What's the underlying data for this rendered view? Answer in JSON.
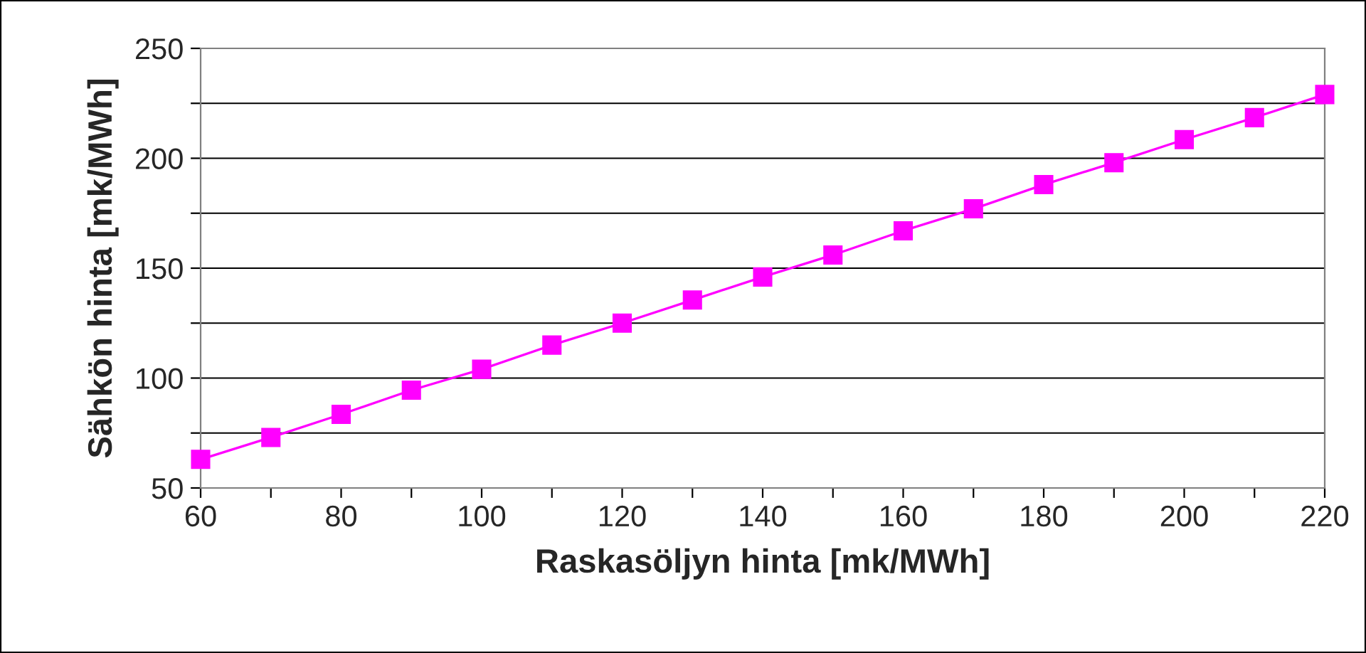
{
  "chart_data": {
    "type": "line",
    "xlabel": "Raskasöljyn hinta [mk/MWh]",
    "ylabel": "Sähkön hinta [mk/MWh]",
    "x": [
      60,
      70,
      80,
      90,
      100,
      110,
      120,
      130,
      140,
      150,
      160,
      170,
      180,
      190,
      200,
      210,
      220
    ],
    "series": [
      {
        "color": "#ff00ff",
        "values": [
          63,
          73,
          83.5,
          94.5,
          104,
          115,
          125,
          135.5,
          146,
          156,
          167,
          177,
          188,
          198,
          208.5,
          218.5,
          229
        ]
      }
    ],
    "xlim": [
      60,
      220
    ],
    "ylim": [
      50,
      250
    ],
    "xticks": [
      60,
      {
        "value": 70,
        "label": null
      },
      80,
      {
        "value": 90,
        "label": null
      },
      100,
      {
        "value": 110,
        "label": null
      },
      120,
      {
        "value": 130,
        "label": null
      },
      140,
      {
        "value": 150,
        "label": null
      },
      160,
      {
        "value": 170,
        "label": null
      },
      180,
      {
        "value": 190,
        "label": null
      },
      200,
      {
        "value": 210,
        "label": null
      },
      220
    ],
    "yticks": [
      50,
      {
        "value": 75,
        "label": null
      },
      100,
      {
        "value": 125,
        "label": null
      },
      150,
      {
        "value": 175,
        "label": null
      },
      200,
      {
        "value": 225,
        "label": null
      },
      250
    ],
    "grid": "y",
    "marker": "square",
    "line_style": "solid"
  }
}
